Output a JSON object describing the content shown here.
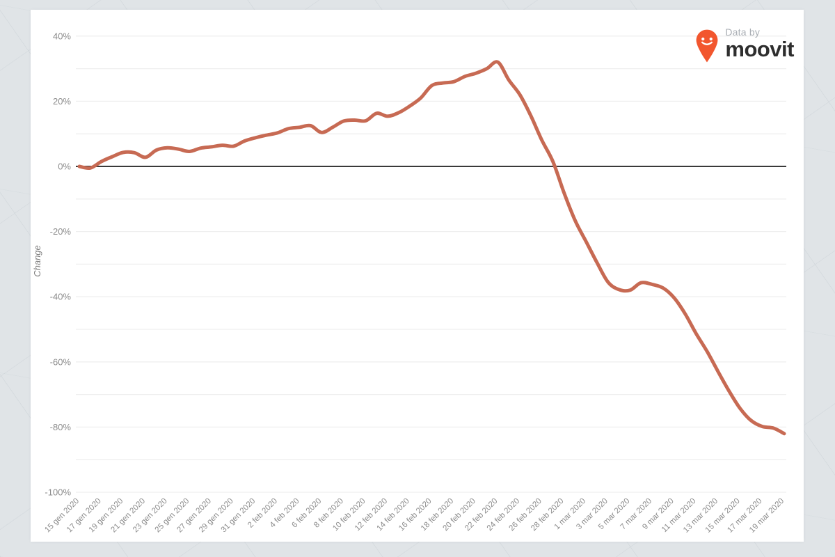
{
  "branding": {
    "data_by": "Data by",
    "brand": "moovit",
    "pin_color": "#f2562e",
    "wordmark_color": "#2e2e2e"
  },
  "chart_data": {
    "type": "line",
    "title": "",
    "xlabel": "",
    "ylabel": "Change",
    "grid": true,
    "zero_line": true,
    "legend": "none",
    "ylim": [
      -100,
      45
    ],
    "grid_step_pct": 10,
    "ytick_values": [
      40,
      20,
      0,
      -20,
      -40,
      -60,
      -80,
      -100
    ],
    "ytick_labels": [
      "40%",
      "20%",
      "0%",
      "-20%",
      "-40%",
      "-60%",
      "-80%",
      "-100%"
    ],
    "x": [
      "15 gen 2020",
      "16 gen 2020",
      "17 gen 2020",
      "18 gen 2020",
      "19 gen 2020",
      "20 gen 2020",
      "21 gen 2020",
      "22 gen 2020",
      "23 gen 2020",
      "24 gen 2020",
      "25 gen 2020",
      "26 gen 2020",
      "27 gen 2020",
      "28 gen 2020",
      "29 gen 2020",
      "30 gen 2020",
      "31 gen 2020",
      "1 feb 2020",
      "2 feb 2020",
      "3 feb 2020",
      "4 feb 2020",
      "5 feb 2020",
      "6 feb 2020",
      "7 feb 2020",
      "8 feb 2020",
      "9 feb 2020",
      "10 feb 2020",
      "11 feb 2020",
      "12 feb 2020",
      "13 feb 2020",
      "14 feb 2020",
      "15 feb 2020",
      "16 feb 2020",
      "17 feb 2020",
      "18 feb 2020",
      "19 feb 2020",
      "20 feb 2020",
      "21 feb 2020",
      "22 feb 2020",
      "23 feb 2020",
      "24 feb 2020",
      "25 feb 2020",
      "26 feb 2020",
      "27 feb 2020",
      "28 feb 2020",
      "29 feb 2020",
      "1 mar 2020",
      "2 mar 2020",
      "3 mar 2020",
      "4 mar 2020",
      "5 mar 2020",
      "6 mar 2020",
      "7 mar 2020",
      "8 mar 2020",
      "9 mar 2020",
      "10 mar 2020",
      "11 mar 2020",
      "12 mar 2020",
      "13 mar 2020",
      "14 mar 2020",
      "15 mar 2020",
      "16 mar 2020",
      "17 mar 2020",
      "18 mar 2020",
      "19 mar 2020"
    ],
    "x_tick_every": 2,
    "x_tick_labels": [
      "15 gen 2020",
      "17 gen 2020",
      "19 gen 2020",
      "21 gen 2020",
      "23 gen 2020",
      "25 gen 2020",
      "27 gen 2020",
      "29 gen 2020",
      "31 gen 2020",
      "2 feb 2020",
      "4 feb 2020",
      "6 feb 2020",
      "8 feb 2020",
      "10 feb 2020",
      "12 feb 2020",
      "14 feb 2020",
      "16 feb 2020",
      "18 feb 2020",
      "20 feb 2020",
      "22 feb 2020",
      "24 feb 2020",
      "26 feb 2020",
      "28 feb 2020",
      "1 mar 2020",
      "3 mar 2020",
      "5 mar 2020",
      "7 mar 2020",
      "9 mar 2020",
      "11 mar 2020",
      "13 mar 2020",
      "15 mar 2020",
      "17 mar 2020",
      "19 mar 2020"
    ],
    "series": [
      {
        "name": "Change",
        "color": "#c76a53",
        "values": [
          0,
          -0.5,
          1.5,
          3,
          4.3,
          4.2,
          2.8,
          5,
          5.7,
          5.3,
          4.6,
          5.6,
          6,
          6.5,
          6.2,
          7.8,
          8.8,
          9.6,
          10.3,
          11.6,
          12,
          12.5,
          10.4,
          12,
          13.9,
          14.2,
          14,
          16.3,
          15.4,
          16.5,
          18.5,
          21,
          24.8,
          25.6,
          26,
          27.6,
          28.6,
          30,
          32,
          26.5,
          22,
          15.5,
          8,
          1.5,
          -8,
          -16.5,
          -23,
          -29.5,
          -35.5,
          -37.8,
          -38,
          -35.7,
          -36.2,
          -37.3,
          -40.3,
          -45.2,
          -51.3,
          -56.8,
          -63,
          -69,
          -74.3,
          -78,
          -79.8,
          -80.3,
          -82
        ]
      }
    ],
    "annotations": {
      "peak": {
        "x": "22 feb 2020",
        "y": 32
      },
      "end": {
        "x": "19 mar 2020",
        "y": -82
      }
    },
    "colors": {
      "grid": "#efefef",
      "zero_line": "#3a3a3a",
      "tick_text": "#8b8b8b",
      "axis_title": "#7d7d7d"
    }
  }
}
